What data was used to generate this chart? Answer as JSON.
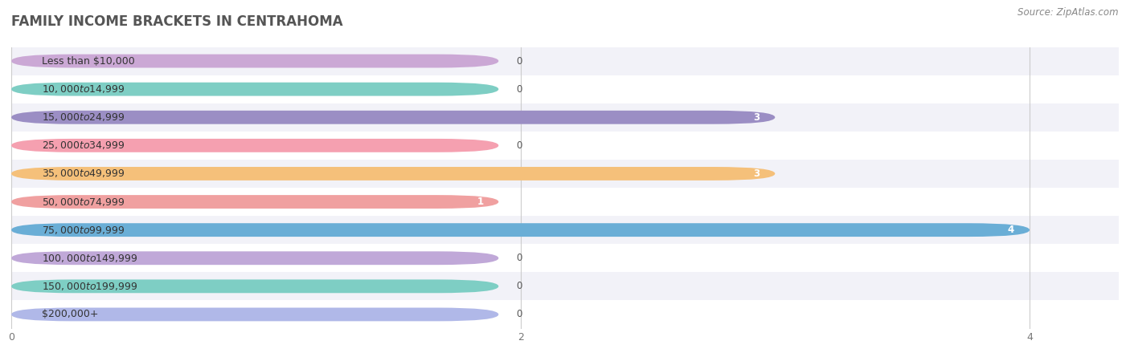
{
  "title": "FAMILY INCOME BRACKETS IN CENTRAHOMA",
  "source": "Source: ZipAtlas.com",
  "categories": [
    "Less than $10,000",
    "$10,000 to $14,999",
    "$15,000 to $24,999",
    "$25,000 to $34,999",
    "$35,000 to $49,999",
    "$50,000 to $74,999",
    "$75,000 to $99,999",
    "$100,000 to $149,999",
    "$150,000 to $199,999",
    "$200,000+"
  ],
  "values": [
    0,
    0,
    3,
    0,
    3,
    1,
    4,
    0,
    0,
    0
  ],
  "bar_colors": [
    "#cba8d5",
    "#7ecec4",
    "#9b8ec4",
    "#f5a0b0",
    "#f5c07a",
    "#f0a0a0",
    "#6aaed6",
    "#c0a8d8",
    "#7ecec4",
    "#b0b8e8"
  ],
  "background_row_colors": [
    "#f2f2f8",
    "#ffffff"
  ],
  "xlim": [
    0,
    4.35
  ],
  "xticks": [
    0,
    2,
    4
  ],
  "title_fontsize": 12,
  "label_fontsize": 9,
  "value_fontsize": 8.5,
  "source_fontsize": 8.5
}
